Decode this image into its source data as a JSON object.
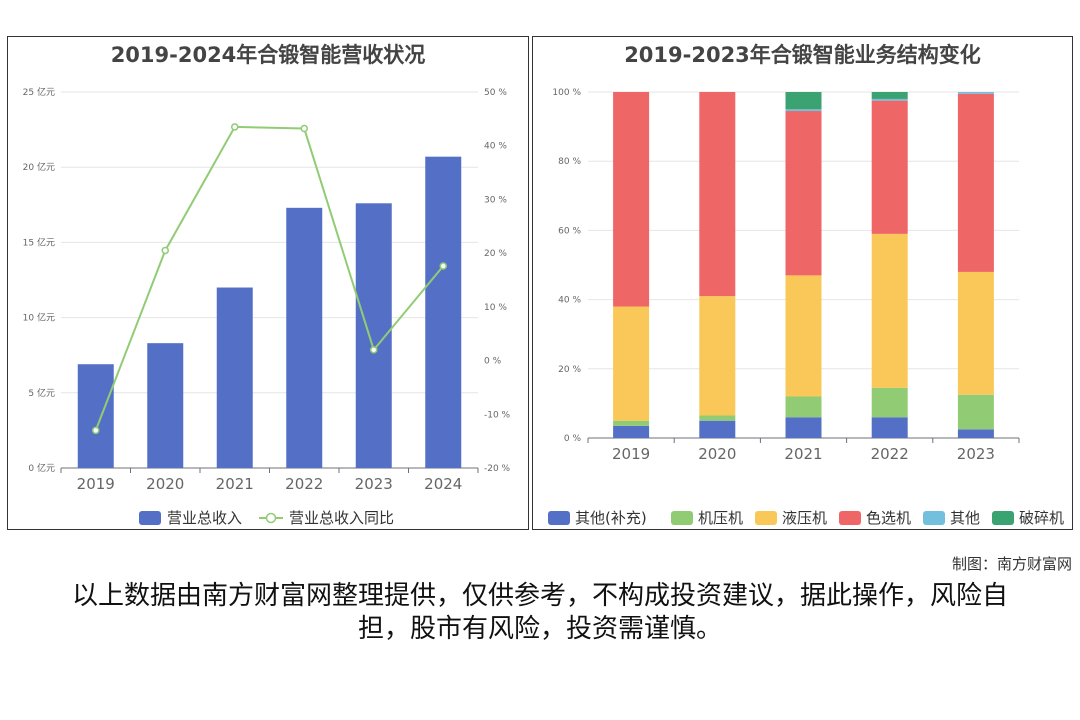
{
  "left_chart": {
    "title": "2019-2024年合锻智能营收状况",
    "legend": {
      "bar": "营业总收入",
      "line": "营业总收入同比"
    },
    "colors": {
      "bar": "#5470c6",
      "line": "#91cc75"
    },
    "y_ticks": [
      "0 亿元",
      "5 亿元",
      "10 亿元",
      "15 亿元",
      "20 亿元",
      "25 亿元"
    ],
    "y2_ticks": [
      "-20 %",
      "-10 %",
      "0 %",
      "10 %",
      "20 %",
      "30 %",
      "40 %",
      "50 %"
    ]
  },
  "right_chart": {
    "title": "2019-2023年合锻智能业务结构变化",
    "y_ticks": [
      "0 %",
      "20 %",
      "40 %",
      "60 %",
      "80 %",
      "100 %"
    ],
    "legend": [
      "其他(补充)",
      "机压机",
      "液压机",
      "色选机",
      "其他",
      "破碎机"
    ],
    "colors": [
      "#5470c6",
      "#91cc75",
      "#fac858",
      "#ee6666",
      "#73c0de",
      "#3ba272"
    ]
  },
  "chart_data": [
    {
      "type": "bar",
      "title": "2019-2024年合锻智能营收状况",
      "categories": [
        "2019",
        "2020",
        "2021",
        "2022",
        "2023",
        "2024"
      ],
      "series": [
        {
          "name": "营业总收入",
          "type": "bar",
          "axis": "left",
          "unit": "亿元",
          "values": [
            6.9,
            8.3,
            12.0,
            17.3,
            17.6,
            20.7
          ]
        },
        {
          "name": "营业总收入同比",
          "type": "line",
          "axis": "right",
          "unit": "%",
          "values": [
            -13.0,
            20.5,
            43.5,
            43.2,
            2.0,
            17.6
          ]
        }
      ],
      "ylim": [
        0,
        25
      ],
      "y2lim": [
        -20,
        50
      ],
      "grid": true,
      "legend_position": "bottom"
    },
    {
      "type": "bar",
      "stacked": true,
      "title": "2019-2023年合锻智能业务结构变化",
      "categories": [
        "2019",
        "2020",
        "2021",
        "2022",
        "2023"
      ],
      "series": [
        {
          "name": "其他(补充)",
          "values": [
            3.5,
            5.0,
            6.0,
            6.0,
            2.5
          ]
        },
        {
          "name": "机压机",
          "values": [
            1.5,
            1.5,
            6.0,
            8.5,
            10.0
          ]
        },
        {
          "name": "液压机",
          "values": [
            33.0,
            34.5,
            35.0,
            44.5,
            35.5
          ]
        },
        {
          "name": "色选机",
          "values": [
            62.0,
            59.0,
            47.5,
            38.5,
            51.5
          ]
        },
        {
          "name": "其他",
          "values": [
            0.0,
            0.0,
            0.5,
            0.5,
            0.5
          ]
        },
        {
          "name": "破碎机",
          "values": [
            0.0,
            0.0,
            5.0,
            2.0,
            0.0
          ]
        }
      ],
      "ylim": [
        0,
        100
      ],
      "unit": "%",
      "grid": true,
      "legend_position": "bottom"
    }
  ],
  "footer": {
    "credit": "制图：南方财富网",
    "disclaimer": "以上数据由南方财富网整理提供，仅供参考，不构成投资建议，据此操作，风险自担，股市有风险，投资需谨慎。"
  }
}
